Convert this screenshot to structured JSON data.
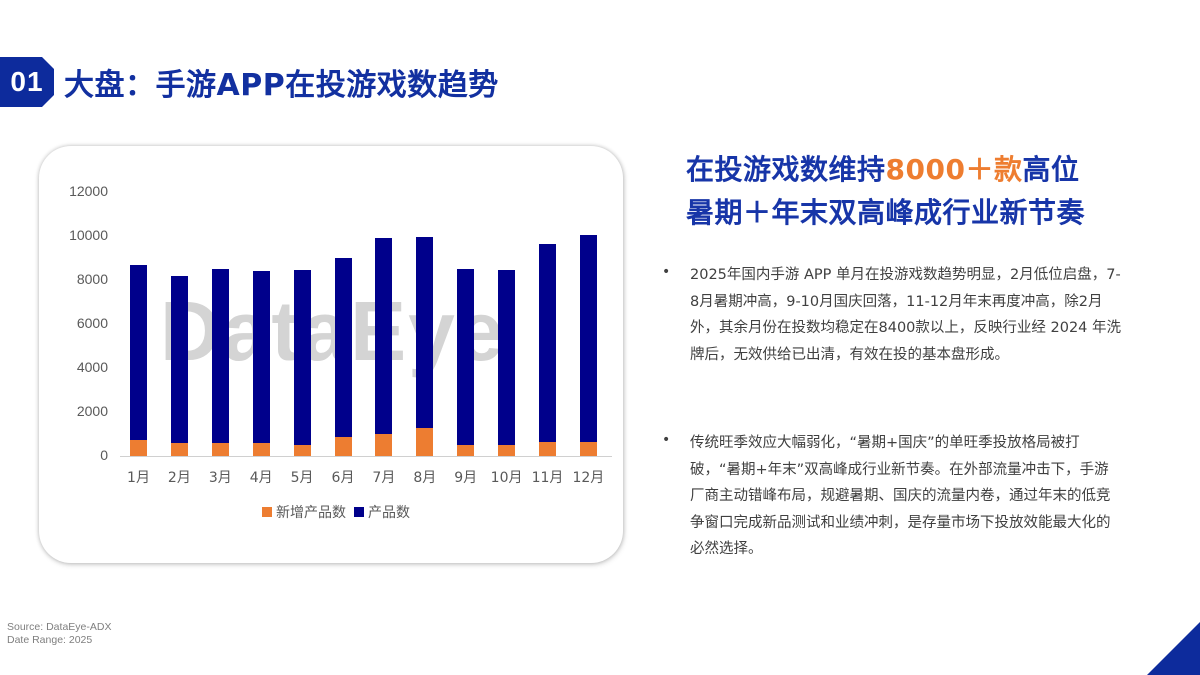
{
  "header": {
    "badge": "01",
    "title": "大盘：手游APP在投游戏数趋势"
  },
  "headline": {
    "line1_pre": "在投游戏数维持",
    "line1_highlight": "8000＋款",
    "line1_post": "高位",
    "line2": "暑期＋年末双高峰成行业新节奏"
  },
  "bullets": [
    "2025年国内手游 APP 单月在投游戏数趋势明显，2月低位启盘，7-8月暑期冲高，9-10月国庆回落，11-12月年末再度冲高，除2月外，其余月份在投数均稳定在8400款以上，反映行业经 2024 年洗牌后，无效供给已出清，有效在投的基本盘形成。",
    "传统旺季效应大幅弱化，“暑期+国庆”的单旺季投放格局被打破，“暑期+年末”双高峰成行业新节奏。在外部流量冲击下，手游厂商主动错峰布局，规避暑期、国庆的流量内卷，通过年末的低竞争窗口完成新品测试和业绩冲刺，是存量市场下投放效能最大化的必然选择。"
  ],
  "bullet_marker": "•",
  "footer": {
    "source": "Source: DataEye-ADX",
    "date_range": "Date Range:  2025"
  },
  "watermark": "DataEye",
  "colors": {
    "brand_blue": "#0d2b9c",
    "heading_blue": "#1735a8",
    "accent_orange": "#ee7d30",
    "bar_total": "#00008b",
    "bar_new": "#ed7d31"
  },
  "chart_data": {
    "type": "bar",
    "title": "",
    "xlabel": "",
    "ylabel": "",
    "categories": [
      "1月",
      "2月",
      "3月",
      "4月",
      "5月",
      "6月",
      "7月",
      "8月",
      "9月",
      "10月",
      "11月",
      "12月"
    ],
    "series": [
      {
        "name": "新增产品数",
        "color": "#ed7d31",
        "values": [
          730,
          600,
          600,
          600,
          500,
          860,
          1000,
          1270,
          500,
          500,
          640,
          640
        ]
      },
      {
        "name": "产品数",
        "color": "#00008b",
        "values": [
          8700,
          8200,
          8500,
          8400,
          8450,
          9000,
          9900,
          9950,
          8500,
          8450,
          9650,
          10050
        ]
      }
    ],
    "overlap": true,
    "yticks": [
      "0",
      "2000",
      "4000",
      "6000",
      "8000",
      "10000",
      "12000"
    ],
    "ylim": [
      0,
      12000
    ],
    "grid": false,
    "legend_position": "bottom",
    "legend": [
      "新增产品数",
      "产品数"
    ]
  }
}
